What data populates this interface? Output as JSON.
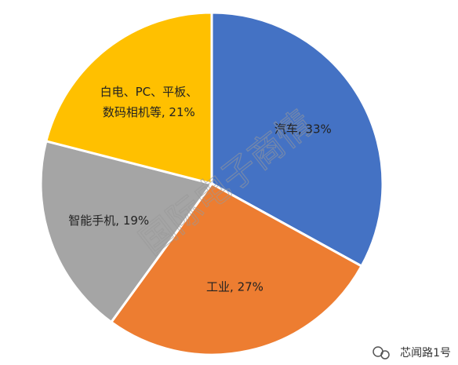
{
  "chart_data": {
    "type": "pie",
    "values": [
      33,
      27,
      19,
      21
    ],
    "value_labels": [
      [
        "汽车, 33%"
      ],
      [
        "工业, 27%"
      ],
      [
        "智能手机, 19%"
      ],
      [
        "白电、PC、平板、",
        "数码相机等, 21%"
      ]
    ],
    "colors": [
      "#4472c4",
      "#ed7d31",
      "#a5a5a5",
      "#ffc000"
    ]
  },
  "watermark": "国际电子商情",
  "footer": "芯闻路1号"
}
